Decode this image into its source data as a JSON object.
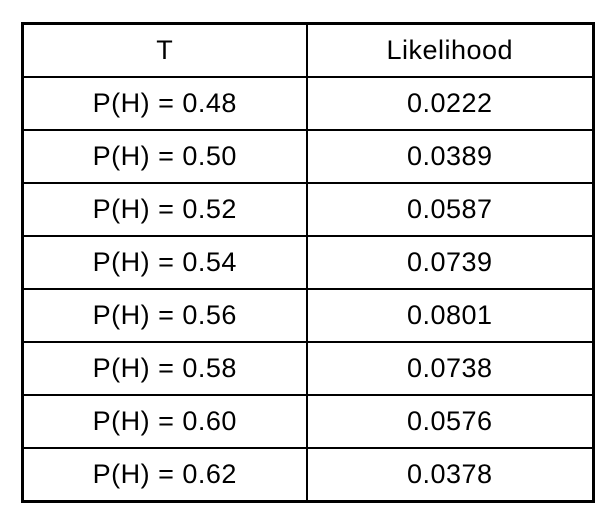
{
  "colors": {
    "background": "#ffffff",
    "border": "#000000",
    "text": "#000000"
  },
  "table": {
    "headers": [
      "T",
      "Likelihood"
    ],
    "rows": [
      {
        "t": "P(H) = 0.48",
        "likelihood": "0.0222"
      },
      {
        "t": "P(H) = 0.50",
        "likelihood": "0.0389"
      },
      {
        "t": "P(H) = 0.52",
        "likelihood": "0.0587"
      },
      {
        "t": "P(H) = 0.54",
        "likelihood": "0.0739"
      },
      {
        "t": "P(H) = 0.56",
        "likelihood": "0.0801"
      },
      {
        "t": "P(H) = 0.58",
        "likelihood": "0.0738"
      },
      {
        "t": "P(H) = 0.60",
        "likelihood": "0.0576"
      },
      {
        "t": "P(H) = 0.62",
        "likelihood": "0.0378"
      }
    ]
  },
  "chart_data": {
    "type": "table",
    "title": "",
    "columns": [
      "T",
      "Likelihood"
    ],
    "x_label_template": "P(H) = {value}",
    "p_h_values": [
      0.48,
      0.5,
      0.52,
      0.54,
      0.56,
      0.58,
      0.6,
      0.62
    ],
    "likelihood_values": [
      0.0222,
      0.0389,
      0.0587,
      0.0739,
      0.0801,
      0.0738,
      0.0576,
      0.0378
    ]
  }
}
